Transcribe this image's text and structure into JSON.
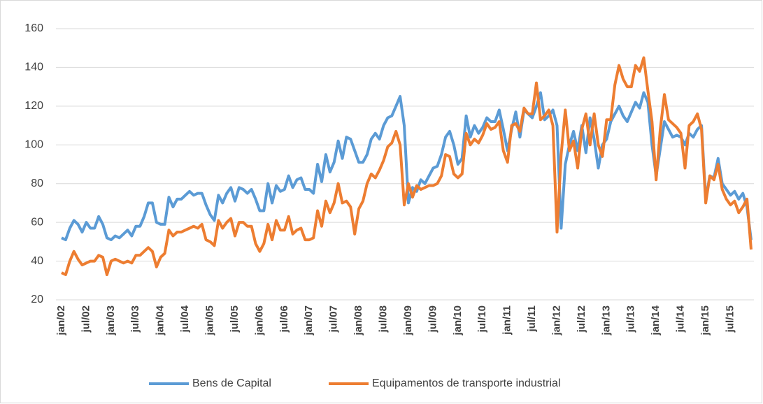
{
  "chart_data": {
    "type": "line",
    "categories": [
      "jan/02",
      null,
      null,
      null,
      null,
      null,
      "jul/02",
      null,
      null,
      null,
      null,
      null,
      "jan/03",
      null,
      null,
      null,
      null,
      null,
      "jul/03",
      null,
      null,
      null,
      null,
      null,
      "jan/04",
      null,
      null,
      null,
      null,
      null,
      "jul/04",
      null,
      null,
      null,
      null,
      null,
      "jan/05",
      null,
      null,
      null,
      null,
      null,
      "jul/05",
      null,
      null,
      null,
      null,
      null,
      "jan/06",
      null,
      null,
      null,
      null,
      null,
      "jul/06",
      null,
      null,
      null,
      null,
      null,
      "jan/07",
      null,
      null,
      null,
      null,
      null,
      "jul/07",
      null,
      null,
      null,
      null,
      null,
      "jan/08",
      null,
      null,
      null,
      null,
      null,
      "jul/08",
      null,
      null,
      null,
      null,
      null,
      "jan/09",
      null,
      null,
      null,
      null,
      null,
      "jul/09",
      null,
      null,
      null,
      null,
      null,
      "jan/10",
      null,
      null,
      null,
      null,
      null,
      "jul/10",
      null,
      null,
      null,
      null,
      null,
      "jan/11",
      null,
      null,
      null,
      null,
      null,
      "jul/11",
      null,
      null,
      null,
      null,
      null,
      "jan/12",
      null,
      null,
      null,
      null,
      null,
      "jul/12",
      null,
      null,
      null,
      null,
      null,
      "jan/13",
      null,
      null,
      null,
      null,
      null,
      "jul/13",
      null,
      null,
      null,
      null,
      null,
      "jan/14",
      null,
      null,
      null,
      null,
      null,
      "jul/14",
      null,
      null,
      null,
      null,
      null,
      "jan/15",
      null,
      null,
      null,
      null,
      null,
      "jul/15",
      null,
      null,
      null,
      null,
      null
    ],
    "series": [
      {
        "name": "Bens de Capital",
        "color": "#5b9bd5",
        "values": [
          52,
          51,
          57,
          61,
          59,
          55,
          60,
          57,
          57,
          63,
          59,
          52,
          51,
          53,
          52,
          54,
          56,
          53,
          58,
          58,
          63,
          70,
          70,
          60,
          59,
          59,
          73,
          68,
          72,
          72,
          74,
          76,
          74,
          75,
          75,
          69,
          64,
          61,
          74,
          70,
          75,
          78,
          71,
          78,
          77,
          75,
          77,
          72,
          66,
          66,
          80,
          70,
          79,
          76,
          77,
          84,
          78,
          82,
          83,
          77,
          77,
          75,
          90,
          81,
          95,
          86,
          91,
          102,
          93,
          104,
          103,
          97,
          91,
          91,
          95,
          103,
          106,
          103,
          110,
          114,
          115,
          120,
          125,
          110,
          70,
          78,
          76,
          82,
          80,
          84,
          88,
          89,
          95,
          104,
          107,
          100,
          90,
          93,
          115,
          104,
          110,
          106,
          109,
          114,
          112,
          112,
          118,
          108,
          97,
          108,
          117,
          104,
          118,
          116,
          114,
          120,
          127,
          113,
          115,
          118,
          110,
          57,
          90,
          100,
          107,
          97,
          110,
          96,
          114,
          103,
          88,
          100,
          103,
          112,
          116,
          120,
          115,
          112,
          117,
          122,
          119,
          127,
          122,
          100,
          84,
          98,
          112,
          108,
          104,
          105,
          104,
          100,
          106,
          104,
          108,
          110,
          72,
          84,
          83,
          93,
          80,
          77,
          74,
          76,
          72,
          75,
          68,
          51
        ]
      },
      {
        "name": "Equipamentos de transporte industrial",
        "color": "#ed7d31",
        "values": [
          34,
          33,
          40,
          45,
          41,
          38,
          39,
          40,
          40,
          43,
          42,
          33,
          40,
          41,
          40,
          39,
          40,
          39,
          43,
          43,
          45,
          47,
          45,
          37,
          42,
          44,
          56,
          53,
          55,
          55,
          56,
          57,
          58,
          57,
          59,
          51,
          50,
          48,
          61,
          57,
          60,
          62,
          53,
          60,
          60,
          58,
          58,
          49,
          45,
          49,
          59,
          51,
          61,
          56,
          56,
          63,
          54,
          56,
          57,
          51,
          51,
          52,
          66,
          58,
          71,
          65,
          70,
          80,
          70,
          71,
          68,
          54,
          67,
          71,
          80,
          85,
          83,
          87,
          92,
          99,
          101,
          107,
          100,
          69,
          80,
          73,
          79,
          77,
          78,
          79,
          79,
          80,
          84,
          95,
          94,
          85,
          83,
          85,
          106,
          100,
          103,
          101,
          105,
          111,
          108,
          109,
          112,
          97,
          91,
          110,
          111,
          107,
          119,
          116,
          116,
          132,
          113,
          115,
          118,
          110,
          55,
          95,
          118,
          97,
          102,
          88,
          108,
          116,
          100,
          116,
          100,
          94,
          113,
          113,
          131,
          141,
          134,
          130,
          130,
          141,
          138,
          145,
          128,
          112,
          82,
          108,
          126,
          113,
          111,
          109,
          106,
          88,
          110,
          112,
          116,
          108,
          70,
          84,
          82,
          90,
          77,
          72,
          69,
          71,
          65,
          68,
          72,
          46
        ]
      }
    ],
    "ylim": [
      20,
      160
    ],
    "yticks": [
      20,
      40,
      60,
      80,
      100,
      120,
      140,
      160
    ],
    "grid": true,
    "legend": "bottom"
  }
}
